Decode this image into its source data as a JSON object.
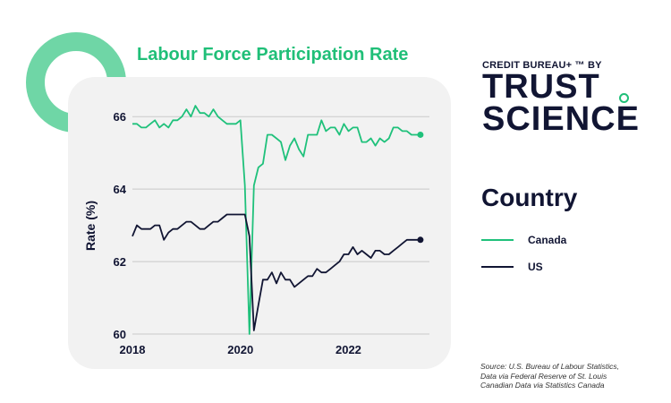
{
  "chart_data": {
    "type": "line",
    "title": "Labour Force Participation Rate",
    "ylabel": "Rate (%)",
    "xlabel": "",
    "xlim": [
      2018.0,
      2023.5
    ],
    "ylim": [
      60,
      66.5
    ],
    "y_ticks": [
      60,
      62,
      64,
      66
    ],
    "x_ticks": [
      2018,
      2020,
      2022
    ],
    "x_tick_labels": [
      "2018",
      "2020",
      "2022"
    ],
    "grid": "horizontal",
    "legend": {
      "title": "Country",
      "placement": "right"
    },
    "series": [
      {
        "name": "Canada",
        "color": "#1fc17b",
        "x": [
          2018.0,
          2018.083,
          2018.167,
          2018.25,
          2018.333,
          2018.417,
          2018.5,
          2018.583,
          2018.667,
          2018.75,
          2018.833,
          2018.917,
          2019.0,
          2019.083,
          2019.167,
          2019.25,
          2019.333,
          2019.417,
          2019.5,
          2019.583,
          2019.667,
          2019.75,
          2019.833,
          2019.917,
          2020.0,
          2020.083,
          2020.167,
          2020.25,
          2020.333,
          2020.417,
          2020.5,
          2020.583,
          2020.667,
          2020.75,
          2020.833,
          2020.917,
          2021.0,
          2021.083,
          2021.167,
          2021.25,
          2021.333,
          2021.417,
          2021.5,
          2021.583,
          2021.667,
          2021.75,
          2021.833,
          2021.917,
          2022.0,
          2022.083,
          2022.167,
          2022.25,
          2022.333,
          2022.417,
          2022.5,
          2022.583,
          2022.667,
          2022.75,
          2022.833,
          2022.917,
          2023.0,
          2023.083,
          2023.167,
          2023.25,
          2023.333
        ],
        "y": [
          65.8,
          65.8,
          65.7,
          65.7,
          65.8,
          65.9,
          65.7,
          65.8,
          65.7,
          65.9,
          65.9,
          66.0,
          66.2,
          66.0,
          66.3,
          66.1,
          66.1,
          66.0,
          66.2,
          66.0,
          65.9,
          65.8,
          65.8,
          65.8,
          65.9,
          64.1,
          60.0,
          64.1,
          64.6,
          64.7,
          65.5,
          65.5,
          65.4,
          65.3,
          64.8,
          65.2,
          65.4,
          65.1,
          64.9,
          65.5,
          65.5,
          65.5,
          65.9,
          65.6,
          65.7,
          65.7,
          65.5,
          65.8,
          65.6,
          65.7,
          65.7,
          65.3,
          65.3,
          65.4,
          65.2,
          65.4,
          65.3,
          65.4,
          65.7,
          65.7,
          65.6,
          65.6,
          65.5,
          65.5,
          65.5
        ]
      },
      {
        "name": "US",
        "color": "#111533",
        "x": [
          2018.0,
          2018.083,
          2018.167,
          2018.25,
          2018.333,
          2018.417,
          2018.5,
          2018.583,
          2018.667,
          2018.75,
          2018.833,
          2018.917,
          2019.0,
          2019.083,
          2019.167,
          2019.25,
          2019.333,
          2019.417,
          2019.5,
          2019.583,
          2019.667,
          2019.75,
          2019.833,
          2019.917,
          2020.0,
          2020.083,
          2020.167,
          2020.25,
          2020.333,
          2020.417,
          2020.5,
          2020.583,
          2020.667,
          2020.75,
          2020.833,
          2020.917,
          2021.0,
          2021.083,
          2021.167,
          2021.25,
          2021.333,
          2021.417,
          2021.5,
          2021.583,
          2021.667,
          2021.75,
          2021.833,
          2021.917,
          2022.0,
          2022.083,
          2022.167,
          2022.25,
          2022.333,
          2022.417,
          2022.5,
          2022.583,
          2022.667,
          2022.75,
          2022.833,
          2022.917,
          2023.0,
          2023.083,
          2023.167,
          2023.25,
          2023.333
        ],
        "y": [
          62.7,
          63.0,
          62.9,
          62.9,
          62.9,
          63.0,
          63.0,
          62.6,
          62.8,
          62.9,
          62.9,
          63.0,
          63.1,
          63.1,
          63.0,
          62.9,
          62.9,
          63.0,
          63.1,
          63.1,
          63.2,
          63.3,
          63.3,
          63.3,
          63.3,
          63.3,
          62.7,
          60.1,
          60.8,
          61.5,
          61.5,
          61.7,
          61.4,
          61.7,
          61.5,
          61.5,
          61.3,
          61.4,
          61.5,
          61.6,
          61.6,
          61.8,
          61.7,
          61.7,
          61.8,
          61.9,
          62.0,
          62.2,
          62.2,
          62.4,
          62.2,
          62.3,
          62.2,
          62.1,
          62.3,
          62.3,
          62.2,
          62.2,
          62.3,
          62.4,
          62.5,
          62.6,
          62.6,
          62.6,
          62.6
        ]
      }
    ]
  },
  "brand": {
    "top_line": "CREDIT BUREAU+ ™ BY",
    "line1": "TRUST",
    "line2": "SCIENCE"
  },
  "source": {
    "line1": "Source: U.S. Bureau of Labour Statistics,",
    "line2": "Data via Federal Reserve of St. Louis",
    "line3": "Canadian Data via Statistics Canada"
  }
}
